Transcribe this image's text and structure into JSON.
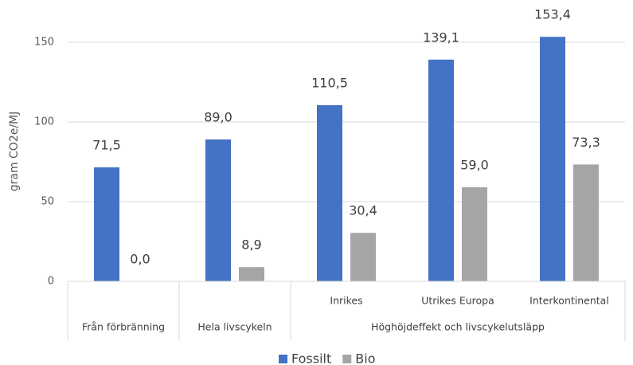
{
  "chart_data": {
    "type": "bar",
    "ylabel": "gram CO2e/MJ",
    "categories": [
      "Från förbränning",
      "Hela livscykeln",
      "Inrikes",
      "Utrikes Europa",
      "Interkontinental"
    ],
    "category_groups": [
      {
        "label": "Höghöjdeffekt och livscykelutsläpp",
        "categories": [
          2,
          3,
          4
        ]
      }
    ],
    "series": [
      {
        "name": "Fossilt",
        "color": "#4472c4",
        "values": [
          71.5,
          89.0,
          110.5,
          139.1,
          153.4
        ],
        "value_labels": [
          "71,5",
          "89,0",
          "110,5",
          "139,1",
          "153,4"
        ]
      },
      {
        "name": "Bio",
        "color": "#a5a5a5",
        "values": [
          0.0,
          8.9,
          30.4,
          59.0,
          73.3
        ],
        "value_labels": [
          "0,0",
          "8,9",
          "30,4",
          "59,0",
          "73,3"
        ]
      }
    ],
    "ylim": [
      0,
      170
    ],
    "yticks": [
      0,
      50,
      100,
      150
    ],
    "grid": true,
    "legend": "bottom"
  }
}
